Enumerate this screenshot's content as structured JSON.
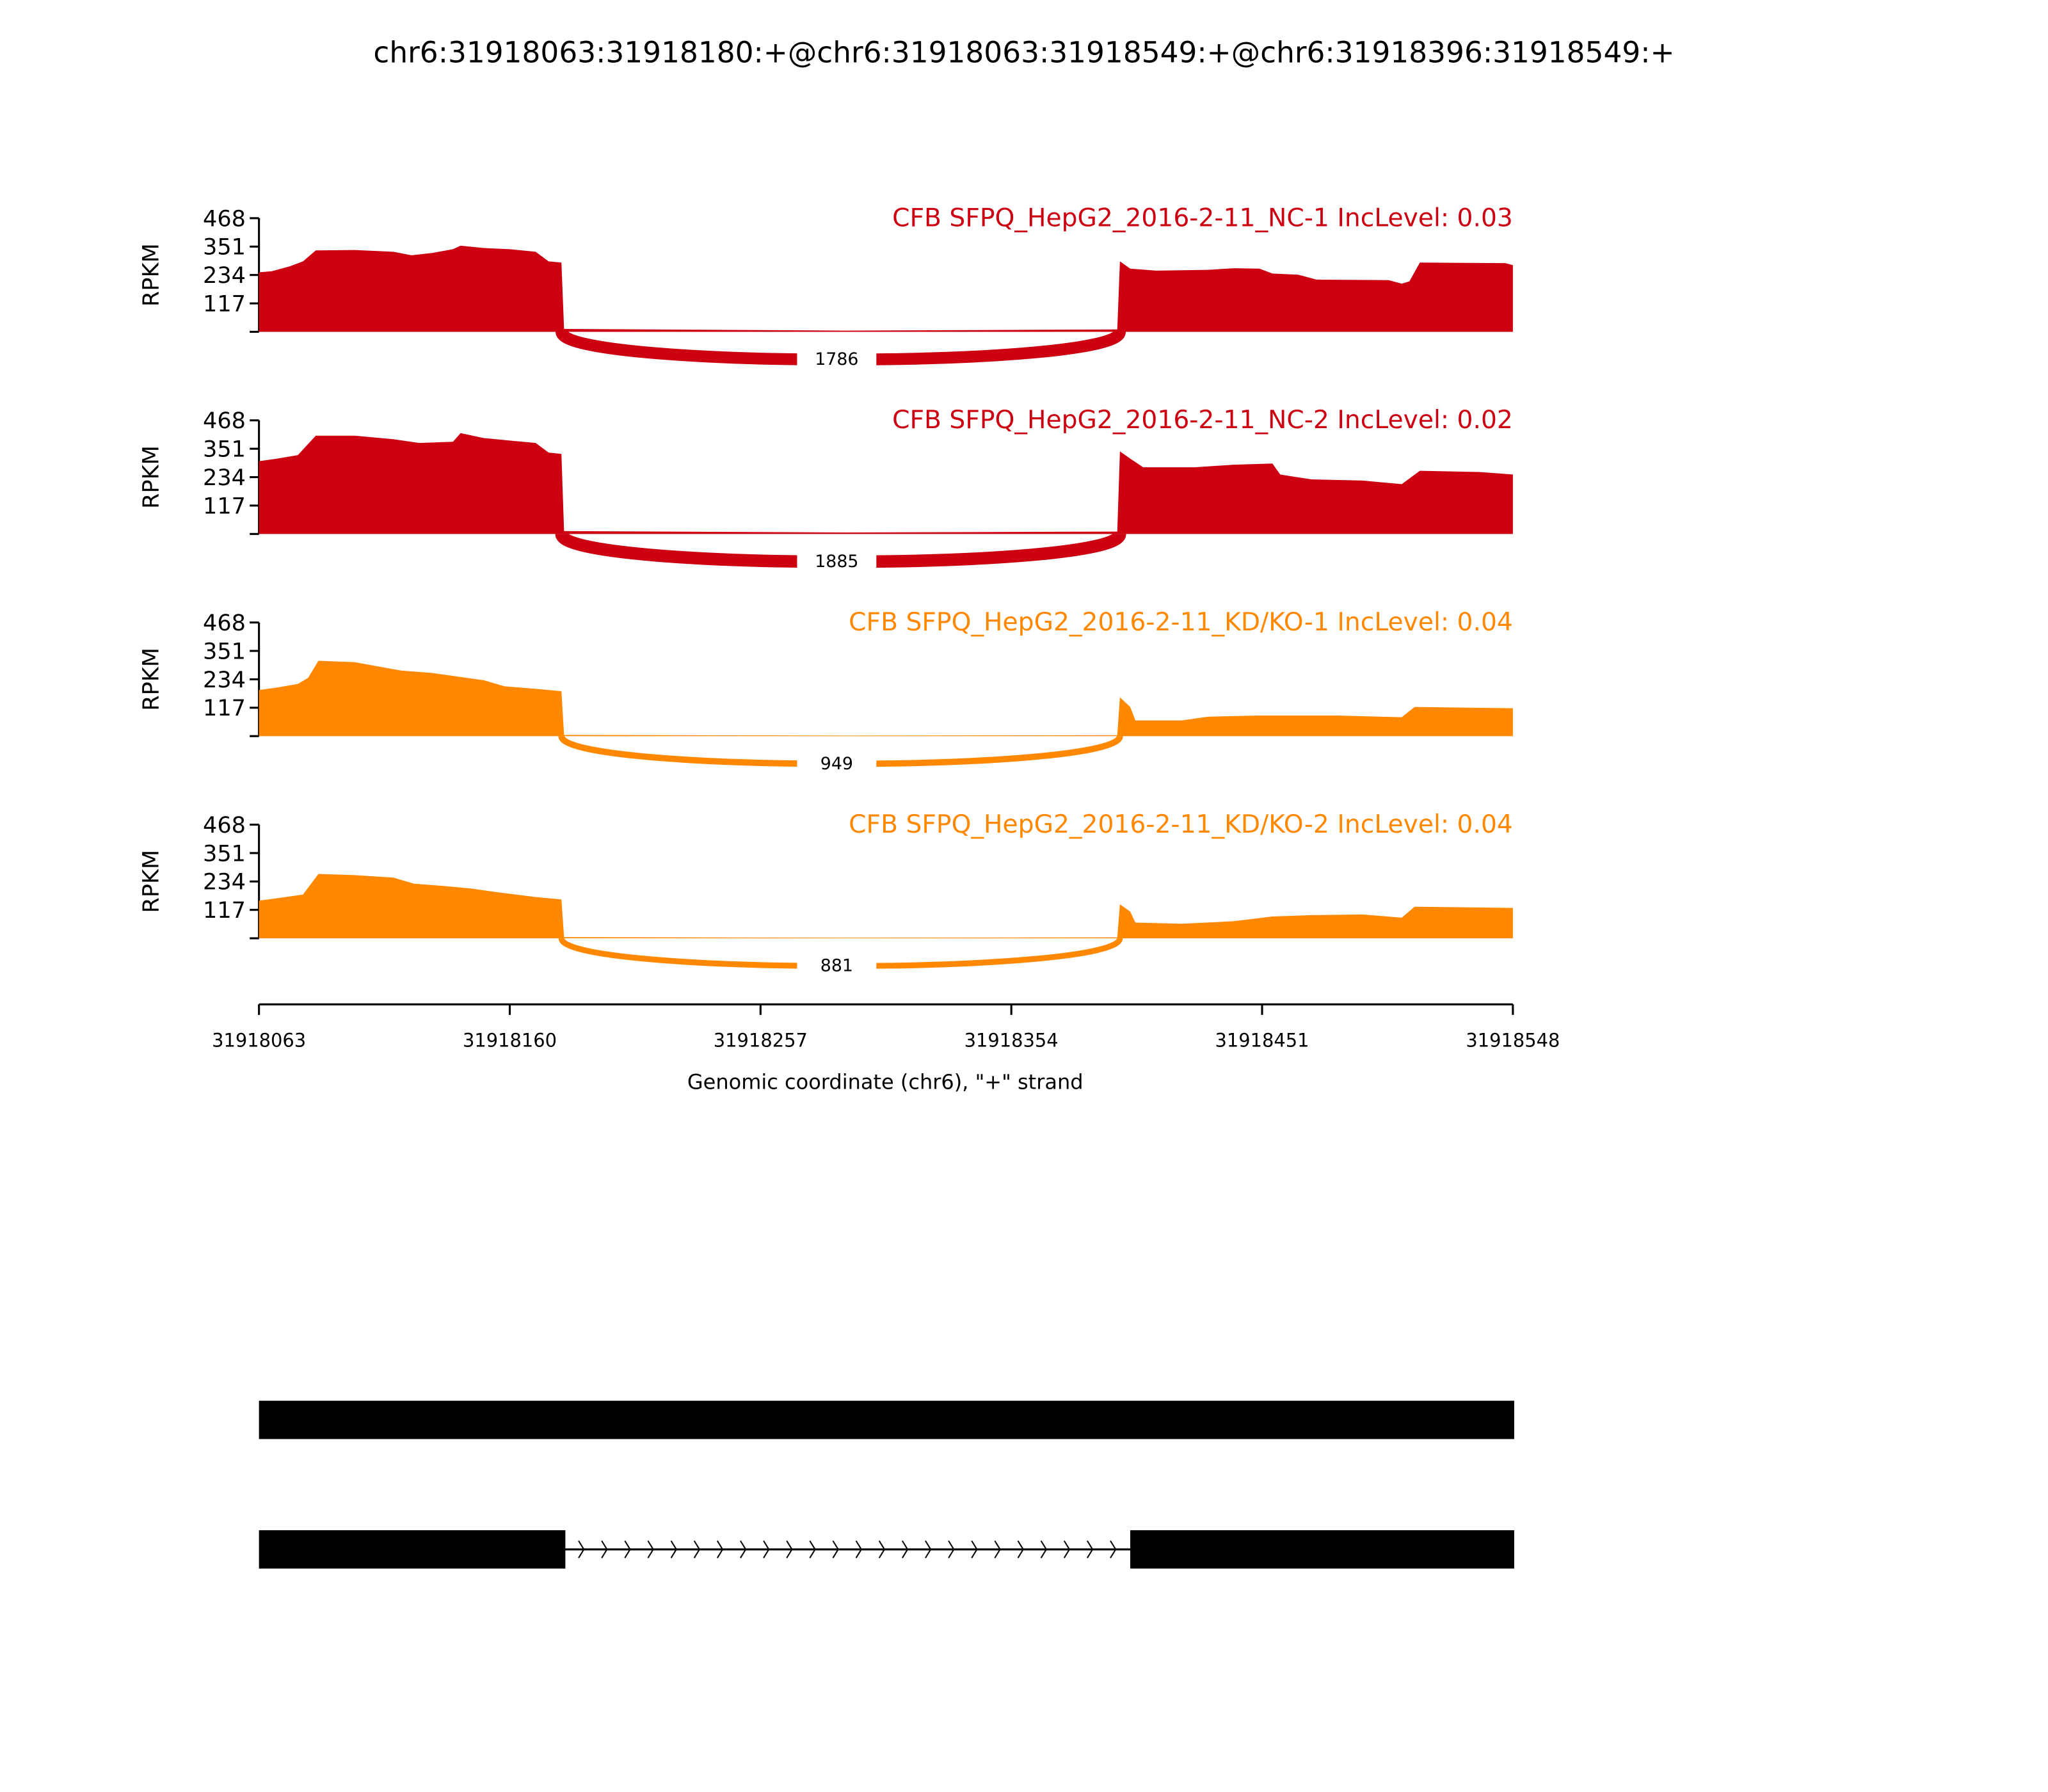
{
  "chart_data": {
    "type": "area",
    "title": "chr6:31918063:31918180:+@chr6:31918063:31918549:+@chr6:31918396:31918549:+",
    "xlabel": "Genomic coordinate (chr6), \"+\" strand",
    "ylabel": "RPKM",
    "xlim": [
      31918063,
      31918548
    ],
    "ylim": [
      0,
      468
    ],
    "xticks": [
      "31918063",
      "31918160",
      "31918257",
      "31918354",
      "31918451",
      "31918548"
    ],
    "yticks": [
      "117",
      "234",
      "351",
      "468"
    ],
    "colors": {
      "NC": "#cc0011",
      "KD": "#ff8800"
    },
    "samples": [
      {
        "label": "CFB SFPQ_HepG2_2016-2-11_NC-1 IncLevel: 0.03",
        "group": "NC",
        "junction": {
          "start": 31918180,
          "end": 31918396,
          "count": "1786"
        },
        "coverage": [
          [
            31918063,
            245
          ],
          [
            31918068,
            250
          ],
          [
            31918075,
            270
          ],
          [
            31918080,
            290
          ],
          [
            31918085,
            335
          ],
          [
            31918100,
            337
          ],
          [
            31918115,
            330
          ],
          [
            31918122,
            315
          ],
          [
            31918130,
            325
          ],
          [
            31918138,
            340
          ],
          [
            31918141,
            355
          ],
          [
            31918150,
            345
          ],
          [
            31918160,
            340
          ],
          [
            31918170,
            330
          ],
          [
            31918175,
            290
          ],
          [
            31918180,
            285
          ],
          [
            31918181,
            12
          ],
          [
            31918290,
            5
          ],
          [
            31918395,
            10
          ],
          [
            31918396,
            290
          ],
          [
            31918400,
            260
          ],
          [
            31918410,
            252
          ],
          [
            31918430,
            255
          ],
          [
            31918440,
            262
          ],
          [
            31918450,
            260
          ],
          [
            31918455,
            240
          ],
          [
            31918465,
            235
          ],
          [
            31918472,
            215
          ],
          [
            31918500,
            213
          ],
          [
            31918505,
            198
          ],
          [
            31918508,
            208
          ],
          [
            31918512,
            285
          ],
          [
            31918545,
            283
          ],
          [
            31918548,
            275
          ]
        ]
      },
      {
        "label": "CFB SFPQ_HepG2_2016-2-11_NC-2 IncLevel: 0.02",
        "group": "NC",
        "junction": {
          "start": 31918180,
          "end": 31918396,
          "count": "1885"
        },
        "coverage": [
          [
            31918063,
            300
          ],
          [
            31918070,
            310
          ],
          [
            31918078,
            325
          ],
          [
            31918085,
            405
          ],
          [
            31918100,
            405
          ],
          [
            31918115,
            390
          ],
          [
            31918125,
            375
          ],
          [
            31918138,
            380
          ],
          [
            31918141,
            415
          ],
          [
            31918150,
            395
          ],
          [
            31918160,
            385
          ],
          [
            31918170,
            375
          ],
          [
            31918175,
            335
          ],
          [
            31918180,
            330
          ],
          [
            31918181,
            12
          ],
          [
            31918290,
            6
          ],
          [
            31918395,
            10
          ],
          [
            31918396,
            340
          ],
          [
            31918400,
            310
          ],
          [
            31918405,
            275
          ],
          [
            31918425,
            275
          ],
          [
            31918440,
            285
          ],
          [
            31918455,
            290
          ],
          [
            31918458,
            245
          ],
          [
            31918470,
            225
          ],
          [
            31918490,
            220
          ],
          [
            31918500,
            210
          ],
          [
            31918505,
            205
          ],
          [
            31918512,
            260
          ],
          [
            31918535,
            255
          ],
          [
            31918548,
            245
          ]
        ]
      },
      {
        "label": "CFB SFPQ_HepG2_2016-2-11_KD/KO-1 IncLevel: 0.04",
        "group": "KD",
        "junction": {
          "start": 31918180,
          "end": 31918396,
          "count": "949"
        },
        "coverage": [
          [
            31918063,
            190
          ],
          [
            31918070,
            200
          ],
          [
            31918078,
            215
          ],
          [
            31918082,
            240
          ],
          [
            31918086,
            310
          ],
          [
            31918100,
            305
          ],
          [
            31918110,
            285
          ],
          [
            31918118,
            270
          ],
          [
            31918130,
            260
          ],
          [
            31918140,
            245
          ],
          [
            31918150,
            230
          ],
          [
            31918158,
            205
          ],
          [
            31918170,
            195
          ],
          [
            31918180,
            185
          ],
          [
            31918181,
            5
          ],
          [
            31918290,
            2
          ],
          [
            31918395,
            4
          ],
          [
            31918396,
            160
          ],
          [
            31918400,
            120
          ],
          [
            31918402,
            65
          ],
          [
            31918420,
            65
          ],
          [
            31918430,
            80
          ],
          [
            31918450,
            85
          ],
          [
            31918480,
            85
          ],
          [
            31918505,
            78
          ],
          [
            31918510,
            120
          ],
          [
            31918548,
            115
          ]
        ]
      },
      {
        "label": "CFB SFPQ_HepG2_2016-2-11_KD/KO-2 IncLevel: 0.04",
        "group": "KD",
        "junction": {
          "start": 31918180,
          "end": 31918396,
          "count": "881"
        },
        "coverage": [
          [
            31918063,
            155
          ],
          [
            31918070,
            165
          ],
          [
            31918080,
            180
          ],
          [
            31918086,
            265
          ],
          [
            31918100,
            260
          ],
          [
            31918115,
            250
          ],
          [
            31918123,
            225
          ],
          [
            31918135,
            215
          ],
          [
            31918145,
            205
          ],
          [
            31918155,
            190
          ],
          [
            31918170,
            170
          ],
          [
            31918180,
            160
          ],
          [
            31918181,
            5
          ],
          [
            31918290,
            2
          ],
          [
            31918395,
            4
          ],
          [
            31918396,
            140
          ],
          [
            31918400,
            110
          ],
          [
            31918402,
            65
          ],
          [
            31918420,
            60
          ],
          [
            31918440,
            70
          ],
          [
            31918455,
            90
          ],
          [
            31918470,
            95
          ],
          [
            31918490,
            98
          ],
          [
            31918505,
            85
          ],
          [
            31918510,
            130
          ],
          [
            31918548,
            125
          ]
        ]
      }
    ],
    "gene_tracks": [
      {
        "exons": [
          [
            31918063,
            31918548
          ]
        ]
      },
      {
        "exons": [
          [
            31918063,
            31918181
          ],
          [
            31918400,
            31918548
          ]
        ],
        "intron_strand": "+"
      }
    ]
  }
}
